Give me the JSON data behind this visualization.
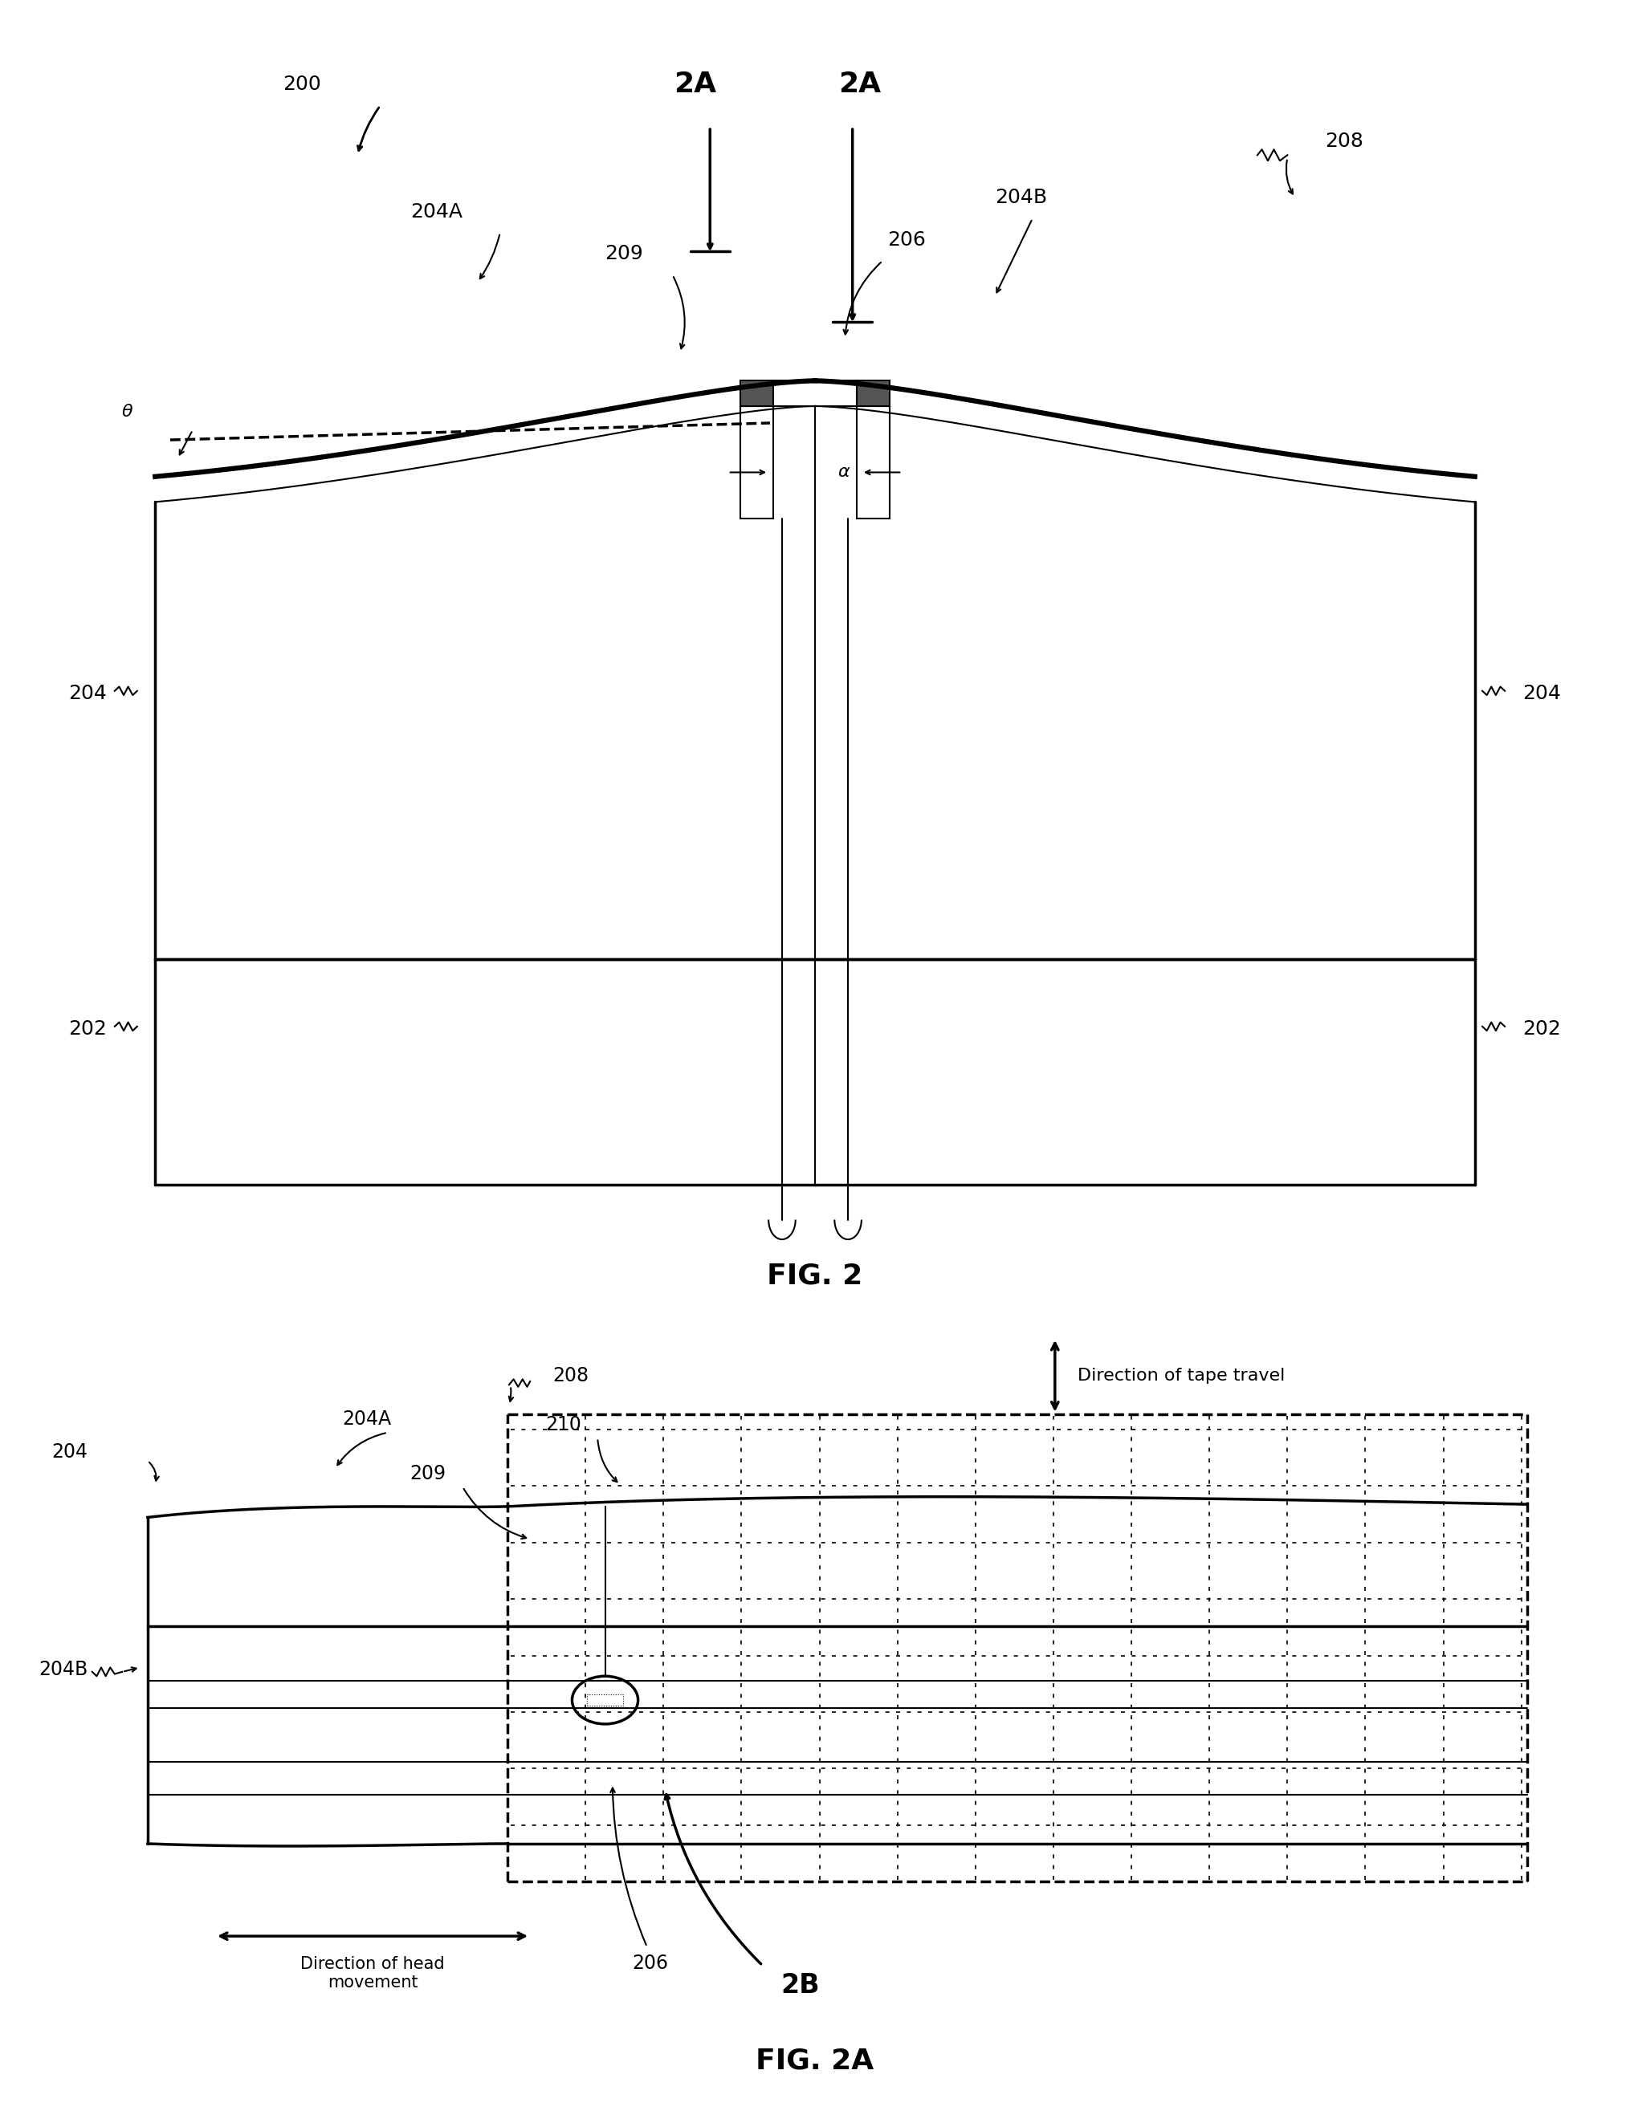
{
  "bg_color": "#ffffff",
  "fig_width": 20.3,
  "fig_height": 26.35,
  "fig2_label": "FIG. 2",
  "fig2a_label": "FIG. 2A",
  "label_200": "200",
  "label_202": "202",
  "label_204": "204",
  "label_204A": "204A",
  "label_204B": "204B",
  "label_206": "206",
  "label_208": "208",
  "label_209": "209",
  "label_210": "210",
  "label_2A": "2A",
  "label_2B": "2B",
  "label_alpha": "α",
  "label_theta": "θ",
  "label_tape": "Direction of tape travel",
  "label_head": "Direction of head\nmovement"
}
